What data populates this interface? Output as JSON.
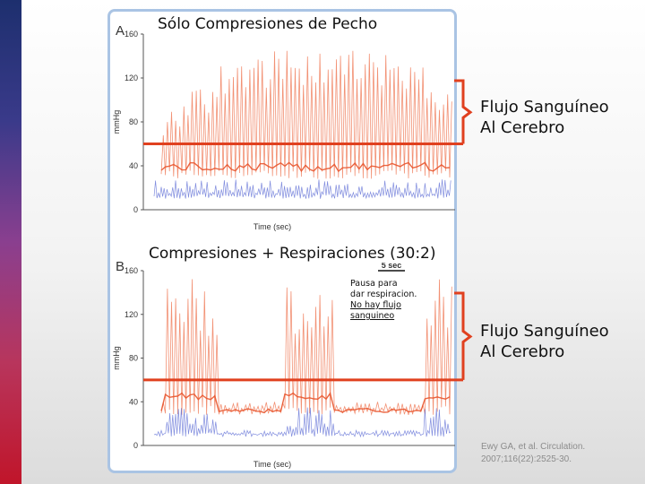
{
  "chart_data": [
    {
      "type": "line",
      "panel_label": "A",
      "title": "Sólo Compresiones de Pecho",
      "xlabel": "Time (sec)",
      "ylabel": "mmHg",
      "ylim": [
        0,
        160
      ],
      "yticks": [
        0,
        40,
        80,
        120,
        160
      ],
      "threshold": 60,
      "series": [
        {
          "name": "",
          "color": "#f07e5c",
          "peak_max": 145,
          "trough": 28,
          "pattern": "continuous"
        },
        {
          "name": "",
          "color": "#4a5bd0",
          "peak_max": 28,
          "trough": 10,
          "pattern": "continuous"
        }
      ]
    },
    {
      "type": "line",
      "panel_label": "B",
      "title": "Compresiones + Respiraciones (30:2)",
      "xlabel": "Time (sec)",
      "ylabel": "mmHg",
      "ylim": [
        0,
        160
      ],
      "yticks": [
        0,
        40,
        80,
        120,
        160
      ],
      "threshold": 60,
      "scale_bar": "5 sec",
      "series": [
        {
          "name": "",
          "color": "#f07e5c",
          "peak_max": 155,
          "trough": 28,
          "pattern": "bursts"
        },
        {
          "name": "",
          "color": "#4a5bd0",
          "peak_max": 35,
          "trough": 8,
          "pattern": "bursts"
        }
      ]
    }
  ],
  "annotations": {
    "callout_top": [
      "Flujo Sanguíneo",
      "Al Cerebro"
    ],
    "callout_bottom": [
      "Flujo Sanguíneo",
      "Al Cerebro"
    ],
    "pause_note": [
      "Pausa para",
      "dar respiracion.",
      "No hay flujo",
      "sanguineo"
    ],
    "citation": [
      "Ewy GA, et al. Circulation.",
      "2007;116(22):2525-30."
    ]
  },
  "colors": {
    "arterial": "#f07e5c",
    "venous": "#4a5bd0",
    "threshold_line": "#e0401f",
    "panel_border": "#aac4e4"
  }
}
